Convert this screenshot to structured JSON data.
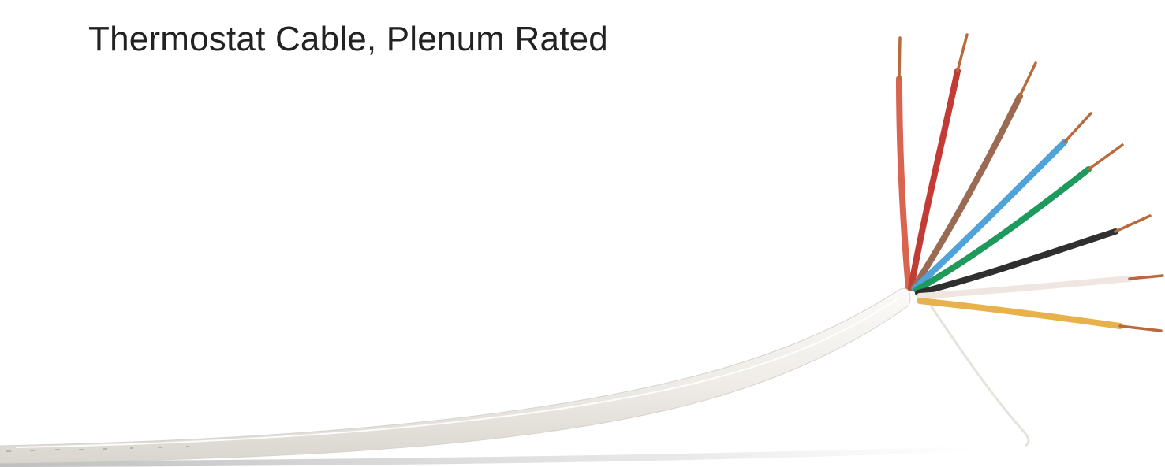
{
  "title": "Thermostat Cable, Plenum Rated",
  "photo": {
    "icon": "cable-photo",
    "jacket_color": "#f2f0ec",
    "conductor_colors": [
      "#d9644f",
      "#c23b35",
      "#9a6a52",
      "#4fa3d9",
      "#1e9a5c",
      "#2f2f2f",
      "#efe6e2",
      "#e7b24c"
    ],
    "copper_color": "#b86a3c"
  }
}
